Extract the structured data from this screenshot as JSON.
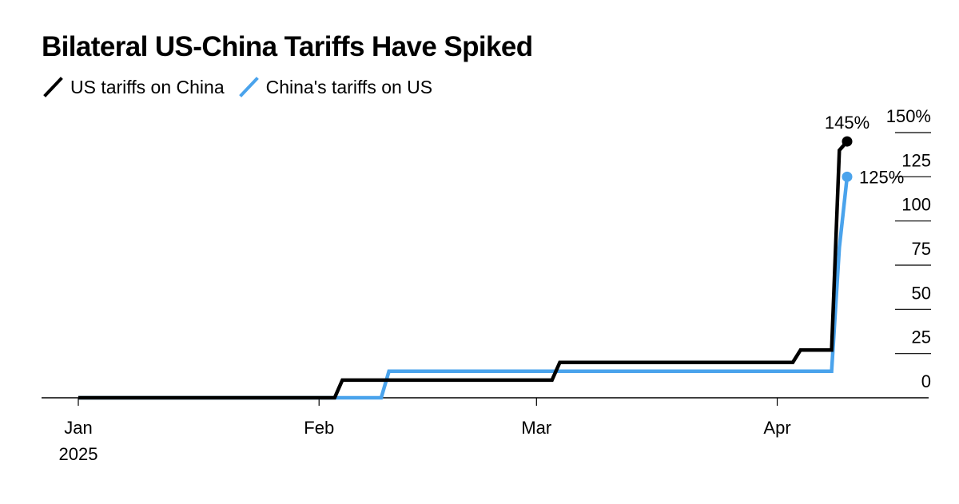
{
  "chart_data": {
    "type": "line",
    "title": "Bilateral US-China Tariffs Have Spiked",
    "xlabel": "",
    "ylabel": "",
    "y_axis_position": "right",
    "ylim": [
      0,
      150
    ],
    "yticks": [
      {
        "value": 0,
        "label": "0"
      },
      {
        "value": 25,
        "label": "25"
      },
      {
        "value": 50,
        "label": "50"
      },
      {
        "value": 75,
        "label": "75"
      },
      {
        "value": 100,
        "label": "100"
      },
      {
        "value": 125,
        "label": "125"
      },
      {
        "value": 150,
        "label": "150%"
      }
    ],
    "xlim": [
      "2025-01-01",
      "2025-04-21"
    ],
    "xticks": [
      {
        "value": "2025-01-01",
        "label": "Jan",
        "sublabel": "2025"
      },
      {
        "value": "2025-02-01",
        "label": "Feb",
        "sublabel": ""
      },
      {
        "value": "2025-03-01",
        "label": "Mar",
        "sublabel": ""
      },
      {
        "value": "2025-04-01",
        "label": "Apr",
        "sublabel": ""
      }
    ],
    "grid": false,
    "legend_position": "top-left",
    "series": [
      {
        "name": "US tariffs on China",
        "color": "#000000",
        "end_label": "145%",
        "points": [
          [
            "2025-01-01",
            0
          ],
          [
            "2025-02-03",
            0
          ],
          [
            "2025-02-04",
            10
          ],
          [
            "2025-03-03",
            10
          ],
          [
            "2025-03-04",
            20
          ],
          [
            "2025-04-03",
            20
          ],
          [
            "2025-04-04",
            27
          ],
          [
            "2025-04-08",
            27
          ],
          [
            "2025-04-09",
            140
          ],
          [
            "2025-04-10",
            145
          ]
        ]
      },
      {
        "name": "China's tariffs on US",
        "color": "#4aa3ec",
        "end_label": "125%",
        "points": [
          [
            "2025-01-01",
            0
          ],
          [
            "2025-02-09",
            0
          ],
          [
            "2025-02-10",
            15
          ],
          [
            "2025-04-08",
            15
          ],
          [
            "2025-04-09",
            85
          ],
          [
            "2025-04-10",
            125
          ]
        ]
      }
    ]
  }
}
